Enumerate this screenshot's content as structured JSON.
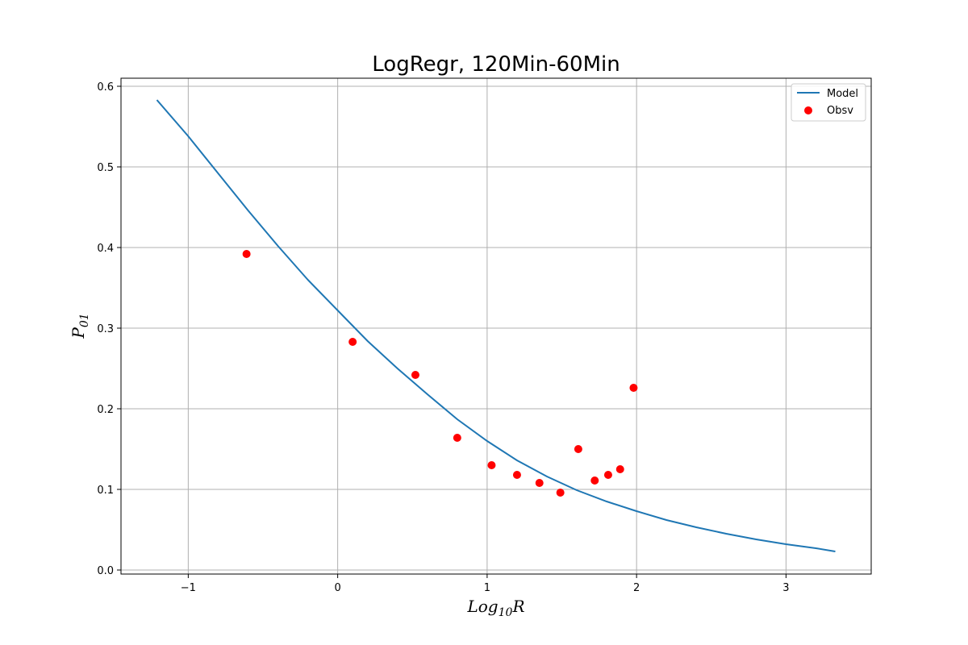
{
  "chart_data": {
    "type": "line+scatter",
    "title": "LogRegr, 120Min-60Min",
    "xlabel": {
      "base": "Log",
      "sub": "10",
      "rest": "R"
    },
    "ylabel": {
      "base": "P",
      "sub": "01"
    },
    "xlim": [
      -1.45,
      3.57
    ],
    "ylim": [
      -0.005,
      0.61
    ],
    "x_ticks": [
      -1,
      0,
      1,
      2,
      3
    ],
    "x_tick_labels": [
      "−1",
      "0",
      "1",
      "2",
      "3"
    ],
    "y_ticks": [
      0.0,
      0.1,
      0.2,
      0.3,
      0.4,
      0.5,
      0.6
    ],
    "y_tick_labels": [
      "0.0",
      "0.1",
      "0.2",
      "0.3",
      "0.4",
      "0.5",
      "0.6"
    ],
    "grid": true,
    "legend_position": "top-right",
    "colors": {
      "model": "#1f77b4",
      "obsv": "#ff0000",
      "grid": "#b0b0b0"
    },
    "series": [
      {
        "name": "Model",
        "kind": "line",
        "x": [
          -1.21,
          -1.0,
          -0.8,
          -0.6,
          -0.4,
          -0.2,
          0.0,
          0.2,
          0.4,
          0.6,
          0.8,
          1.0,
          1.2,
          1.4,
          1.6,
          1.8,
          2.0,
          2.2,
          2.4,
          2.6,
          2.8,
          3.0,
          3.2,
          3.33
        ],
        "y": [
          0.583,
          0.538,
          0.492,
          0.446,
          0.402,
          0.36,
          0.322,
          0.284,
          0.25,
          0.218,
          0.187,
          0.16,
          0.136,
          0.116,
          0.099,
          0.085,
          0.073,
          0.062,
          0.053,
          0.045,
          0.038,
          0.032,
          0.027,
          0.023
        ]
      },
      {
        "name": "Obsv",
        "kind": "scatter",
        "x": [
          -0.61,
          0.1,
          0.52,
          0.8,
          1.03,
          1.2,
          1.35,
          1.49,
          1.61,
          1.72,
          1.81,
          1.89,
          1.98
        ],
        "y": [
          0.392,
          0.283,
          0.242,
          0.164,
          0.13,
          0.118,
          0.108,
          0.096,
          0.15,
          0.111,
          0.118,
          0.125,
          0.226
        ]
      }
    ]
  }
}
